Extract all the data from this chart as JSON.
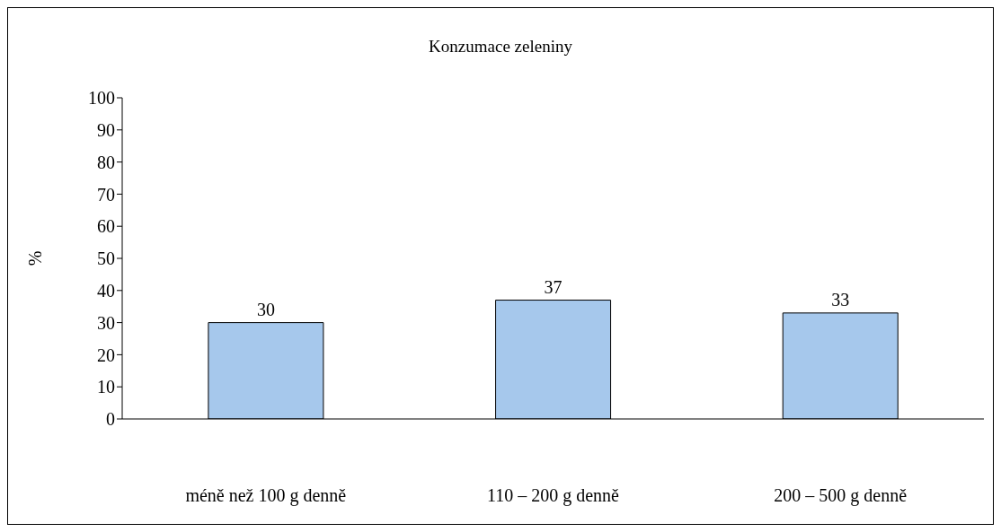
{
  "chart_data": {
    "type": "bar",
    "title": "Konzumace zeleniny",
    "ylabel": "%",
    "categories": [
      "méně než 100 g denně",
      "110 – 200 g denně",
      "200 – 500 g denně"
    ],
    "values": [
      30,
      37,
      33
    ],
    "color": "#a6c8ec",
    "ylim": [
      0,
      100
    ],
    "yticks": [
      0,
      10,
      20,
      30,
      40,
      50,
      60,
      70,
      80,
      90,
      100
    ],
    "grid": false,
    "data_labels": true
  }
}
